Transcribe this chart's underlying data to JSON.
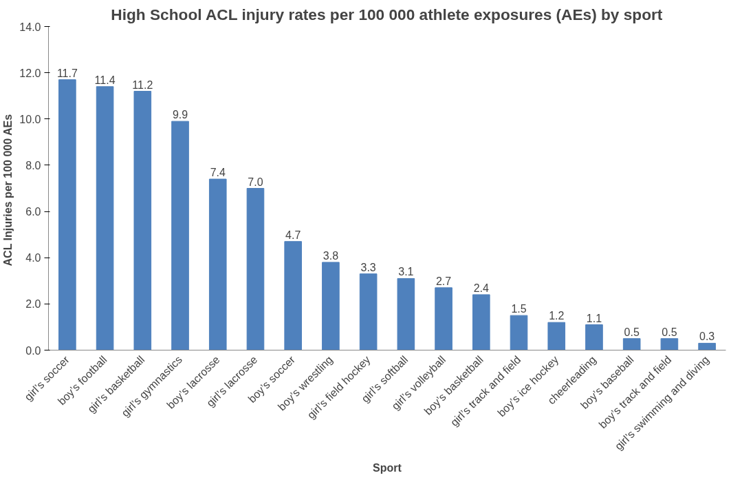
{
  "chart_data": {
    "type": "bar",
    "title": "High School ACL injury rates per 100 000 athlete exposures (AEs) by sport",
    "xlabel": "Sport",
    "ylabel": "ACL Injuries per 100 000  AEs",
    "categories": [
      "girl’s soccer",
      "boy’s football",
      "girl’s basketball",
      "girl’s gymnastics",
      "boy’s lacrosse",
      "girl’s lacrosse",
      "boy’s soccer",
      "boy’s wrestling",
      "girl’s field hockey",
      "girl’s softball",
      "girl’s volleyball",
      "boy’s basketball",
      "girl’s track and field",
      "boy’s ice hockey",
      "cheerleading",
      "boy’s baseball",
      "boy’s track and field",
      "girl’s swimming and diving"
    ],
    "values": [
      11.7,
      11.4,
      11.2,
      9.9,
      7.4,
      7.0,
      4.7,
      3.8,
      3.3,
      3.1,
      2.7,
      2.4,
      1.5,
      1.2,
      1.1,
      0.5,
      0.5,
      0.3
    ],
    "value_labels": [
      "11.7",
      "11.4",
      "11.2",
      "9.9",
      "7.4",
      "7.0",
      "4.7",
      "3.8",
      "3.3",
      "3.1",
      "2.7",
      "2.4",
      "1.5",
      "1.2",
      "1.1",
      "0.5",
      "0.5",
      "0.3"
    ],
    "color": "#4f81bd",
    "ylim": [
      0,
      14
    ],
    "yticks": [
      {
        "value": 0,
        "label": "0.0"
      },
      {
        "value": 2,
        "label": "2.0"
      },
      {
        "value": 4,
        "label": "4.0"
      },
      {
        "value": 6,
        "label": "6.0"
      },
      {
        "value": 8,
        "label": "8.0"
      },
      {
        "value": 10,
        "label": "10.0"
      },
      {
        "value": 12,
        "label": "12.0"
      },
      {
        "value": 14,
        "label": "14.0"
      }
    ],
    "grid": false
  }
}
